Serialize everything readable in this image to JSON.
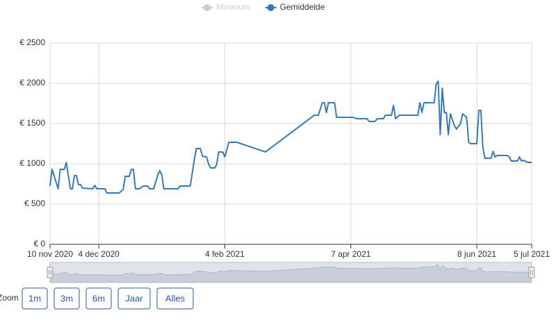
{
  "chart_data": {
    "type": "line",
    "legend": {
      "position": "top"
    },
    "hidden_series": [
      {
        "name": "Minimum",
        "color": "#cccccc"
      }
    ],
    "x": [
      "2020-11-10",
      "2020-11-11",
      "2020-11-14",
      "2020-11-15",
      "2020-11-17",
      "2020-11-18",
      "2020-11-20",
      "2020-11-21",
      "2020-11-22",
      "2020-11-23",
      "2020-11-24",
      "2020-11-25",
      "2020-11-26",
      "2020-12-01",
      "2020-12-02",
      "2020-12-03",
      "2020-12-07",
      "2020-12-08",
      "2020-12-14",
      "2020-12-16",
      "2020-12-17",
      "2020-12-19",
      "2020-12-20",
      "2020-12-21",
      "2020-12-22",
      "2020-12-24",
      "2020-12-26",
      "2020-12-28",
      "2020-12-29",
      "2020-12-31",
      "2021-01-02",
      "2021-01-03",
      "2021-01-04",
      "2021-01-05",
      "2021-01-12",
      "2021-01-13",
      "2021-01-18",
      "2021-01-20",
      "2021-01-21",
      "2021-01-23",
      "2021-01-24",
      "2021-01-26",
      "2021-01-27",
      "2021-01-28",
      "2021-01-30",
      "2021-01-31",
      "2021-02-01",
      "2021-02-03",
      "2021-02-04",
      "2021-02-06",
      "2021-02-10",
      "2021-02-24",
      "2021-03-20",
      "2021-03-22",
      "2021-03-24",
      "2021-03-25",
      "2021-03-26",
      "2021-03-27",
      "2021-03-30",
      "2021-03-31",
      "2021-04-08",
      "2021-04-10",
      "2021-04-15",
      "2021-04-16",
      "2021-04-19",
      "2021-04-20",
      "2021-04-23",
      "2021-04-24",
      "2021-04-27",
      "2021-04-28",
      "2021-04-29",
      "2021-05-01",
      "2021-05-10",
      "2021-05-11",
      "2021-05-12",
      "2021-05-13",
      "2021-05-18",
      "2021-05-19",
      "2021-05-20",
      "2021-05-21",
      "2021-05-22",
      "2021-05-23",
      "2021-05-24",
      "2021-05-25",
      "2021-05-26",
      "2021-05-28",
      "2021-05-29",
      "2021-05-30",
      "2021-05-31",
      "2021-06-01",
      "2021-06-03",
      "2021-06-04",
      "2021-06-05",
      "2021-06-08",
      "2021-06-09",
      "2021-06-10",
      "2021-06-11",
      "2021-06-12",
      "2021-06-15",
      "2021-06-16",
      "2021-06-17",
      "2021-06-18",
      "2021-06-23",
      "2021-06-24",
      "2021-06-25",
      "2021-06-28",
      "2021-06-29",
      "2021-06-30",
      "2021-07-01",
      "2021-07-03",
      "2021-07-05"
    ],
    "series": [
      {
        "name": "Gemiddelde",
        "color": "#3479b9",
        "values": [
          724,
          931,
          690,
          931,
          931,
          1017,
          690,
          690,
          853,
          853,
          741,
          741,
          698,
          690,
          733,
          690,
          690,
          638,
          638,
          681,
          845,
          845,
          931,
          931,
          690,
          690,
          724,
          724,
          690,
          690,
          862,
          914,
          862,
          690,
          690,
          724,
          724,
          1052,
          1190,
          1190,
          1095,
          1086,
          1000,
          948,
          948,
          991,
          1147,
          1147,
          1086,
          1267,
          1267,
          1147,
          1603,
          1603,
          1759,
          1759,
          1638,
          1759,
          1759,
          1578,
          1578,
          1560,
          1560,
          1526,
          1526,
          1560,
          1560,
          1603,
          1603,
          1724,
          1560,
          1603,
          1603,
          1759,
          1638,
          1759,
          1759,
          1991,
          2026,
          1362,
          1940,
          1638,
          1638,
          1362,
          1620,
          1474,
          1431,
          1466,
          1500,
          1620,
          1578,
          1267,
          1250,
          1250,
          1664,
          1664,
          1198,
          1069,
          1069,
          1155,
          1086,
          1103,
          1103,
          1086,
          1034,
          1034,
          1086,
          1034,
          1043,
          1017,
          1017
        ]
      }
    ],
    "xlim": [
      "2020-11-10",
      "2021-07-05"
    ],
    "xticks": [
      {
        "value": "2020-11-10",
        "label": "10 nov 2020"
      },
      {
        "value": "2020-12-04",
        "label": "4 dec 2020"
      },
      {
        "value": "2021-02-04",
        "label": "4 feb 2021"
      },
      {
        "value": "2021-04-07",
        "label": "7 apr 2021"
      },
      {
        "value": "2021-06-08",
        "label": "8 jun 2021"
      },
      {
        "value": "2021-07-05",
        "label": "5 jul 2021"
      }
    ],
    "ylim": [
      0,
      2500
    ],
    "yticks": [
      {
        "value": 0,
        "label": "€ 0"
      },
      {
        "value": 500,
        "label": "€ 500"
      },
      {
        "value": 1000,
        "label": "€ 1000"
      },
      {
        "value": 1500,
        "label": "€ 1500"
      },
      {
        "value": 2000,
        "label": "€ 2000"
      },
      {
        "value": 2500,
        "label": "€ 2500"
      }
    ],
    "grid": true,
    "range_selector": {
      "label": "Zoom",
      "buttons": [
        "1m",
        "3m",
        "6m",
        "Jaar",
        "Alles"
      ]
    }
  }
}
